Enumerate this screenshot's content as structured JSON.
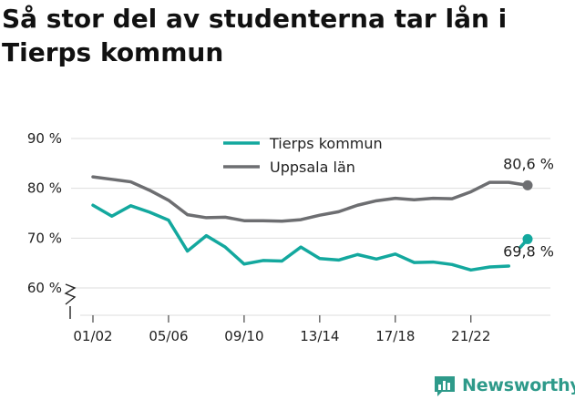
{
  "title": "Så stor del av studenterna tar lån i Tierps kommun",
  "brand": {
    "name": "Newsworthy",
    "logo_icon": "newsworthy-logo-icon"
  },
  "colors": {
    "tierp": "#13a89e",
    "uppsala": "#6d6e71",
    "grid": "#dddddd",
    "axis": "#222222"
  },
  "chart_data": {
    "type": "line",
    "title": "Så stor del av studenterna tar lån i Tierps kommun",
    "xlabel": "",
    "ylabel": "",
    "ylim": [
      55,
      90
    ],
    "yticks": [
      60,
      70,
      80,
      90
    ],
    "ytick_labels": [
      "60 %",
      "70 %",
      "80 %",
      "90 %"
    ],
    "y_axis_break": true,
    "grid": true,
    "legend_position": "top-center",
    "x": [
      "01/02",
      "02/03",
      "03/04",
      "04/05",
      "05/06",
      "06/07",
      "07/08",
      "08/09",
      "09/10",
      "10/11",
      "11/12",
      "12/13",
      "13/14",
      "14/15",
      "15/16",
      "16/17",
      "17/18",
      "18/19",
      "19/20",
      "20/21",
      "21/22",
      "22/23",
      "23/24",
      "24/25"
    ],
    "xticks_shown": [
      "01/02",
      "05/06",
      "09/10",
      "13/14",
      "17/18",
      "21/22"
    ],
    "series": [
      {
        "name": "Tierps kommun",
        "color": "#13a89e",
        "values": [
          76.6,
          74.4,
          76.5,
          75.2,
          73.6,
          67.4,
          70.5,
          68.2,
          64.8,
          65.5,
          65.4,
          68.2,
          65.9,
          65.6,
          66.7,
          65.8,
          66.8,
          65.1,
          65.2,
          64.7,
          63.6,
          64.2,
          64.4,
          69.8
        ],
        "gap_before_last": true,
        "end_label": "69,8 %"
      },
      {
        "name": "Uppsala län",
        "color": "#6d6e71",
        "values": [
          82.3,
          81.8,
          81.3,
          79.6,
          77.6,
          74.7,
          74.1,
          74.2,
          73.5,
          73.5,
          73.4,
          73.7,
          74.6,
          75.3,
          76.6,
          77.5,
          78.0,
          77.7,
          78.0,
          77.9,
          79.3,
          81.2,
          81.2,
          80.6
        ],
        "end_label": "80,6 %"
      }
    ]
  }
}
